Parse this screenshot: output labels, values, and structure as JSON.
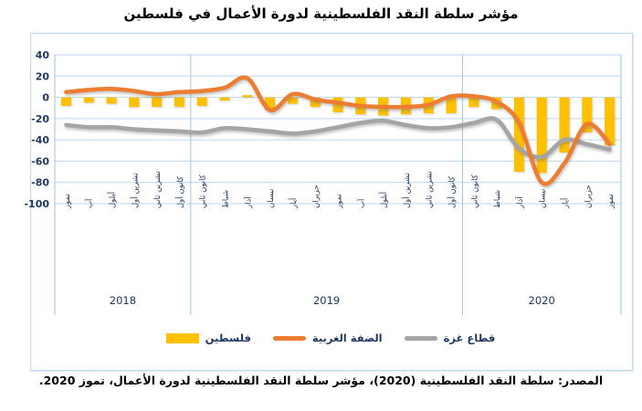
{
  "title": "مؤشر سلطة النقد الفلسطينية لدورة الأعمال في فلسطين",
  "source": "المصدر: سلطة النقد الفلسطينية (2020)، مؤشر سلطة النقد الفلسطينية لدورة الأعمال، تموز 2020.",
  "colors": {
    "grid": "#BDD7EE",
    "axis": "#9DC3E6",
    "tick_label": "#1F3864",
    "bar": "#FFC000",
    "west_bank_line": "#ED7D31",
    "gaza_line": "#A5A5A5"
  },
  "chart_data": {
    "type": "combo-bar-line",
    "title": "مؤشر سلطة النقد الفلسطينية لدورة الأعمال في فلسطين",
    "categories": [
      "تموز",
      "آب",
      "أيلول",
      "تشرين أول",
      "تشرين ثاني",
      "كانون أول",
      "كانون ثاني",
      "شباط",
      "آذار",
      "نيسان",
      "أيار",
      "حزيران",
      "تموز",
      "آب",
      "أيلول",
      "تشرين أول",
      "تشرين ثاني",
      "كانون أول",
      "كانون ثاني",
      "شباط",
      "آذار",
      "نيسان",
      "أيار",
      "حزيران",
      "تموز"
    ],
    "year_groups": [
      {
        "label": "2018",
        "months": 6
      },
      {
        "label": "2019",
        "months": 12
      },
      {
        "label": "2020",
        "months": 7
      }
    ],
    "series": [
      {
        "name": "فلسطين",
        "type": "bar",
        "color": "#FFC000",
        "values": [
          -8,
          -5,
          -6,
          -9,
          -9,
          -9,
          -8,
          -3,
          2,
          -12,
          -6,
          -9,
          -14,
          -16,
          -17,
          -16,
          -15,
          -15,
          -9,
          -11,
          -70,
          -71,
          -52,
          -33,
          -45
        ]
      },
      {
        "name": "الضفة الغربية",
        "type": "line",
        "color": "#ED7D31",
        "values": [
          5,
          7,
          8,
          6,
          3,
          5,
          6,
          9,
          18,
          -12,
          3,
          -2,
          -5,
          -8,
          -9,
          -9,
          -7,
          1,
          1,
          -4,
          -24,
          -80,
          -62,
          -25,
          -44
        ]
      },
      {
        "name": "قطاع غزة",
        "type": "line",
        "color": "#A5A5A5",
        "values": [
          -26,
          -28,
          -28,
          -30,
          -31,
          -32,
          -33,
          -29,
          -30,
          -32,
          -34,
          -32,
          -28,
          -24,
          -22,
          -26,
          -29,
          -28,
          -24,
          -21,
          -48,
          -56,
          -40,
          -44,
          -49
        ]
      }
    ],
    "ylim": [
      -100,
      40
    ],
    "ytick_step": 20,
    "grid": true,
    "legend_position": "bottom"
  }
}
